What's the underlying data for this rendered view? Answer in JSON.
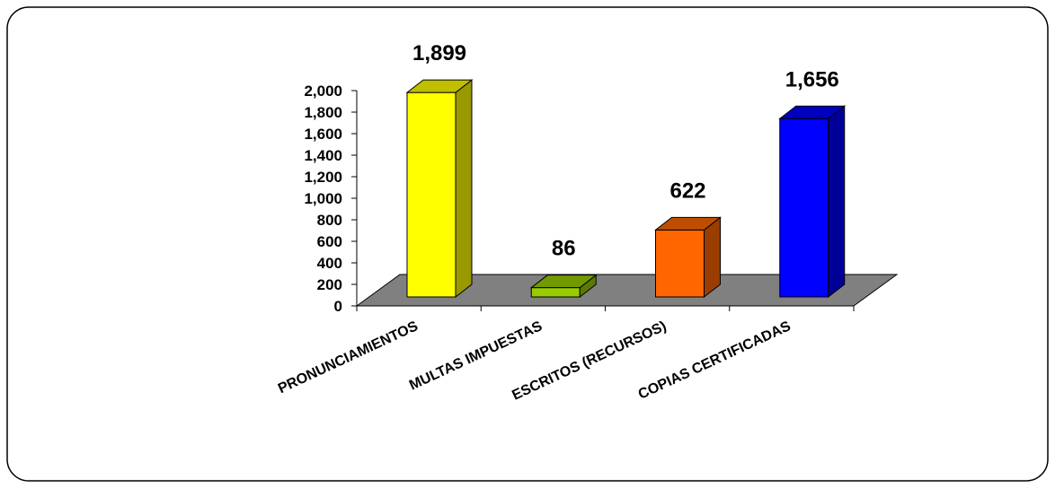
{
  "chart_data": {
    "type": "bar3d",
    "categories": [
      "PRONUNCIAMIENTOS",
      "MULTAS IMPUESTAS",
      "ESCRITOS (RECURSOS)",
      "COPIAS CERTIFICADAS"
    ],
    "values": [
      1899,
      86,
      622,
      1656
    ],
    "value_labels": [
      "1,899",
      "86",
      "622",
      "1,656"
    ],
    "colors": [
      "#ffff00",
      "#99cc00",
      "#ff6600",
      "#0000ff"
    ],
    "ylim": [
      0,
      2000
    ],
    "yticks": [
      0,
      200,
      400,
      600,
      800,
      {
        "value": 1000,
        "label": "1,000"
      },
      {
        "value": 1200,
        "label": "1,200"
      },
      {
        "value": 1400,
        "label": "1,400"
      },
      {
        "value": 1600,
        "label": "1,600"
      },
      {
        "value": 1800,
        "label": "1,800"
      },
      {
        "value": 2000,
        "label": "2,000"
      }
    ],
    "grid": false
  }
}
